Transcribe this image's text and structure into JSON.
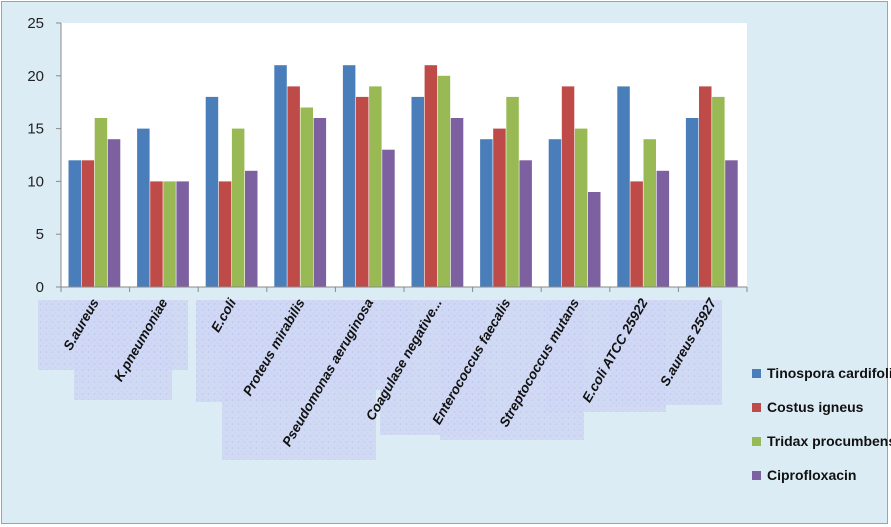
{
  "chart_data": {
    "type": "bar",
    "categories": [
      "S.aureus",
      "K.pneumoniae",
      "E.coli",
      "Proteus mirabilis",
      "Pseudomonas aeruginosa",
      "Coagulase negative...",
      "Enterococcus faecalis",
      "Streptococcus mutans",
      "E.coli ATCC 25922",
      "S.aureus 25927"
    ],
    "series": [
      {
        "name": "Tinospora cardifolia",
        "color": "#4a7ebb",
        "values": [
          12,
          15,
          18,
          21,
          21,
          18,
          14,
          14,
          19,
          16
        ]
      },
      {
        "name": "Costus igneus",
        "color": "#be4b48",
        "values": [
          12,
          10,
          10,
          19,
          18,
          21,
          15,
          19,
          10,
          19
        ]
      },
      {
        "name": "Tridax procumbens",
        "color": "#98b954",
        "values": [
          16,
          10,
          15,
          17,
          19,
          20,
          18,
          15,
          14,
          18
        ]
      },
      {
        "name": "Ciprofloxacin",
        "color": "#7d60a0",
        "values": [
          14,
          10,
          11,
          16,
          13,
          16,
          12,
          9,
          11,
          12
        ]
      }
    ],
    "yticks": [
      "0",
      "5",
      "10",
      "15",
      "20",
      "25"
    ],
    "ylim": [
      0,
      25
    ],
    "grid": false,
    "legend_position": "right",
    "title": "",
    "xlabel": "",
    "ylabel": ""
  }
}
